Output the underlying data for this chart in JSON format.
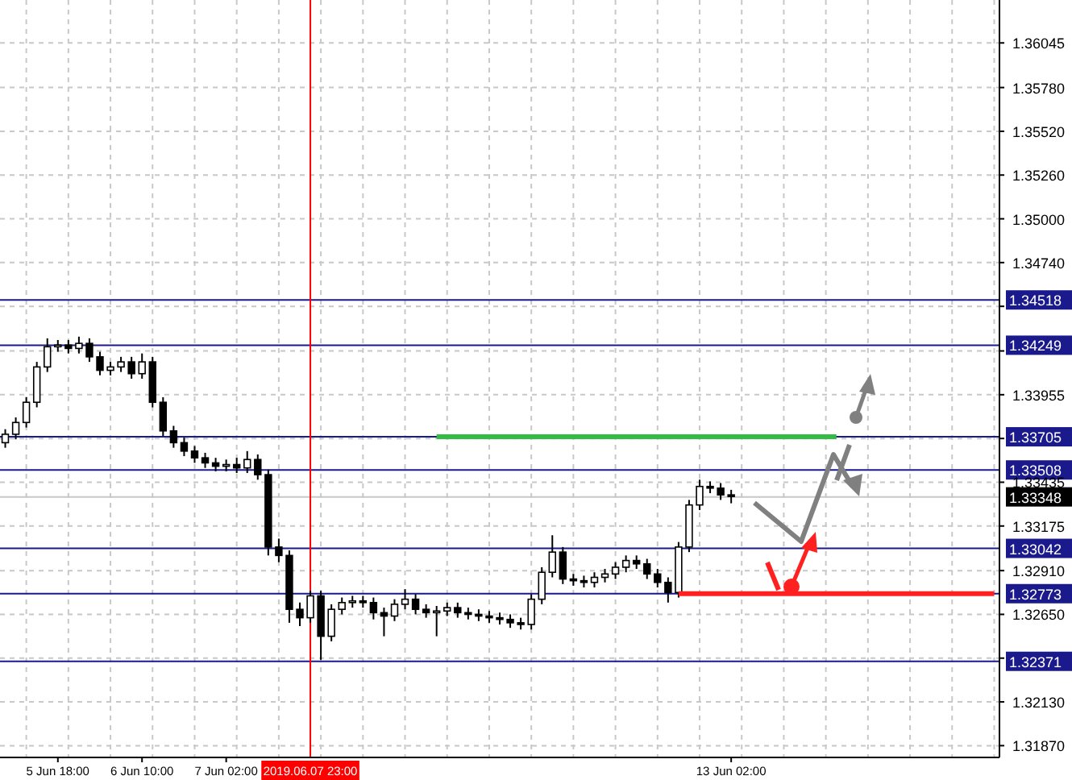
{
  "chart_data": {
    "type": "candlestick",
    "categories": [
      null,
      null,
      null,
      null,
      null,
      "5 Jun 18:00",
      null,
      null,
      null,
      null,
      null,
      null,
      null,
      "6 Jun 10:00",
      null,
      null,
      null,
      null,
      null,
      null,
      null,
      "7 Jun 02:00",
      null,
      null,
      null,
      null,
      null,
      null,
      null,
      "2019.06.07 23:00",
      null,
      null,
      null,
      null,
      null,
      null,
      null,
      null,
      null,
      null,
      null,
      null,
      null,
      null,
      null,
      null,
      null,
      null,
      null,
      null,
      null,
      null,
      null,
      null,
      null,
      null,
      null,
      null,
      null,
      null,
      null,
      null,
      null,
      null,
      null,
      null,
      null,
      null,
      null,
      "13 Jun 02:00",
      null,
      null,
      null,
      null,
      null,
      null,
      null,
      null,
      null,
      null,
      null,
      null,
      null,
      null,
      null,
      null,
      null,
      null,
      null,
      null,
      null,
      null,
      null,
      null,
      null
    ],
    "ohlc": [
      [
        1.3367,
        1.3375,
        1.3364,
        1.3372
      ],
      [
        1.3372,
        1.3382,
        1.3369,
        1.3379
      ],
      [
        1.3379,
        1.3394,
        1.3376,
        1.3391
      ],
      [
        1.3391,
        1.3415,
        1.3388,
        1.3412
      ],
      [
        1.3412,
        1.3429,
        1.3409,
        1.3424
      ],
      [
        1.3424,
        1.3428,
        1.3421,
        1.3425
      ],
      [
        1.3425,
        1.3428,
        1.342,
        1.3423
      ],
      [
        1.3423,
        1.343,
        1.342,
        1.3426
      ],
      [
        1.3426,
        1.3429,
        1.3415,
        1.3418
      ],
      [
        1.3418,
        1.3421,
        1.3407,
        1.341
      ],
      [
        1.341,
        1.3415,
        1.3407,
        1.3412
      ],
      [
        1.3412,
        1.3418,
        1.3409,
        1.3415
      ],
      [
        1.3415,
        1.3418,
        1.3405,
        1.3408
      ],
      [
        1.3408,
        1.342,
        1.3405,
        1.3415
      ],
      [
        1.3415,
        1.3418,
        1.3388,
        1.3391
      ],
      [
        1.3391,
        1.3394,
        1.3371,
        1.3374
      ],
      [
        1.3374,
        1.3377,
        1.3364,
        1.3367
      ],
      [
        1.3367,
        1.337,
        1.3359,
        1.3362
      ],
      [
        1.3362,
        1.3365,
        1.3355,
        1.3358
      ],
      [
        1.3358,
        1.3361,
        1.3352,
        1.3355
      ],
      [
        1.3355,
        1.3358,
        1.335,
        1.3353
      ],
      [
        1.3353,
        1.3357,
        1.335,
        1.3354
      ],
      [
        1.3354,
        1.3358,
        1.3349,
        1.3352
      ],
      [
        1.3352,
        1.3362,
        1.3349,
        1.3357
      ],
      [
        1.3357,
        1.336,
        1.3345,
        1.3348
      ],
      [
        1.3348,
        1.3351,
        1.33,
        1.3305
      ],
      [
        1.3305,
        1.331,
        1.3296,
        1.33
      ],
      [
        1.33,
        1.3303,
        1.326,
        1.3268
      ],
      [
        1.3268,
        1.3272,
        1.3258,
        1.3263
      ],
      [
        1.3263,
        1.3279,
        1.326,
        1.3276
      ],
      [
        1.3276,
        1.3279,
        1.3238,
        1.3252
      ],
      [
        1.3252,
        1.3271,
        1.3249,
        1.3268
      ],
      [
        1.3268,
        1.3275,
        1.3265,
        1.3272
      ],
      [
        1.3272,
        1.3276,
        1.3269,
        1.3273
      ],
      [
        1.3273,
        1.3276,
        1.3269,
        1.3272
      ],
      [
        1.3272,
        1.3275,
        1.3262,
        1.3266
      ],
      [
        1.3266,
        1.3269,
        1.3252,
        1.3264
      ],
      [
        1.3264,
        1.3274,
        1.3261,
        1.3271
      ],
      [
        1.3271,
        1.328,
        1.3268,
        1.3274
      ],
      [
        1.3274,
        1.3277,
        1.3265,
        1.3268
      ],
      [
        1.3268,
        1.3271,
        1.3263,
        1.3266
      ],
      [
        1.3266,
        1.327,
        1.3252,
        1.3267
      ],
      [
        1.3267,
        1.3272,
        1.3264,
        1.3269
      ],
      [
        1.3269,
        1.3272,
        1.3263,
        1.3266
      ],
      [
        1.3266,
        1.3269,
        1.3262,
        1.3265
      ],
      [
        1.3265,
        1.3268,
        1.3261,
        1.3264
      ],
      [
        1.3264,
        1.3267,
        1.326,
        1.3263
      ],
      [
        1.3263,
        1.3266,
        1.3259,
        1.3262
      ],
      [
        1.3262,
        1.3265,
        1.3257,
        1.326
      ],
      [
        1.326,
        1.3263,
        1.3256,
        1.3259
      ],
      [
        1.3259,
        1.3277,
        1.3256,
        1.3274
      ],
      [
        1.3274,
        1.3293,
        1.3271,
        1.329
      ],
      [
        1.329,
        1.3312,
        1.3287,
        1.3302
      ],
      [
        1.3302,
        1.3305,
        1.3283,
        1.3286
      ],
      [
        1.3286,
        1.3289,
        1.3282,
        1.3285
      ],
      [
        1.3285,
        1.3288,
        1.3281,
        1.3284
      ],
      [
        1.3284,
        1.329,
        1.3281,
        1.3287
      ],
      [
        1.3287,
        1.3292,
        1.3284,
        1.3289
      ],
      [
        1.3289,
        1.3296,
        1.3286,
        1.3293
      ],
      [
        1.3293,
        1.33,
        1.329,
        1.3297
      ],
      [
        1.3297,
        1.33,
        1.3292,
        1.3295
      ],
      [
        1.3295,
        1.3298,
        1.3286,
        1.3289
      ],
      [
        1.3289,
        1.3292,
        1.3281,
        1.3284
      ],
      [
        1.3284,
        1.3287,
        1.3272,
        1.3278
      ],
      [
        1.3278,
        1.3308,
        1.3275,
        1.3305
      ],
      [
        1.3305,
        1.3333,
        1.3302,
        1.333
      ],
      [
        1.333,
        1.3345,
        1.3327,
        1.3341
      ],
      [
        1.3341,
        1.3344,
        1.3337,
        1.334
      ],
      [
        1.334,
        1.3343,
        1.3333,
        1.3336
      ],
      [
        1.3336,
        1.3339,
        1.3331,
        1.3335
      ],
      null,
      null,
      null,
      null,
      null,
      null,
      null,
      null,
      null,
      null,
      null,
      null,
      null,
      null,
      null,
      null,
      null,
      null,
      null,
      null,
      null,
      null,
      null,
      null,
      null
    ],
    "series": [
      {
        "type": "line",
        "color": "#33bb44",
        "values": [
          null,
          null,
          null,
          null,
          null,
          null,
          null,
          null,
          null,
          null,
          null,
          null,
          null,
          null,
          null,
          null,
          null,
          null,
          null,
          null,
          null,
          null,
          null,
          null,
          null,
          null,
          null,
          null,
          null,
          null,
          null,
          null,
          null,
          null,
          null,
          null,
          null,
          null,
          null,
          null,
          null,
          1.33705,
          1.33705,
          1.33705,
          1.33705,
          1.33705,
          1.33705,
          1.33705,
          1.33705,
          1.33705,
          1.33705,
          1.33705,
          1.33705,
          1.33705,
          1.33705,
          1.33705,
          1.33705,
          1.33705,
          1.33705,
          1.33705,
          1.33705,
          1.33705,
          1.33705,
          1.33705,
          1.33705,
          1.33705,
          1.33705,
          1.33705,
          1.33705,
          1.33705,
          1.33705,
          1.33705,
          1.33705,
          1.33705,
          1.33705,
          1.33705,
          1.33705,
          1.33705,
          1.33705,
          1.33705,
          null,
          null,
          null,
          null,
          null,
          null,
          null,
          null,
          null,
          null,
          null,
          null,
          null,
          null,
          null
        ]
      },
      {
        "type": "line",
        "color": "#ff2020",
        "values": [
          null,
          null,
          null,
          null,
          null,
          null,
          null,
          null,
          null,
          null,
          null,
          null,
          null,
          null,
          null,
          null,
          null,
          null,
          null,
          null,
          null,
          null,
          null,
          null,
          null,
          null,
          null,
          null,
          null,
          null,
          null,
          null,
          null,
          null,
          null,
          null,
          null,
          null,
          null,
          null,
          null,
          null,
          null,
          null,
          null,
          null,
          null,
          null,
          null,
          null,
          null,
          null,
          null,
          null,
          null,
          null,
          null,
          null,
          null,
          null,
          null,
          null,
          null,
          null,
          1.32773,
          1.32773,
          1.32773,
          1.32773,
          1.32773,
          1.32773,
          1.32773,
          1.32773,
          1.32773,
          1.32773,
          1.32773,
          1.32773,
          1.32773,
          1.32773,
          1.32773,
          1.32773,
          1.32773,
          1.32773,
          1.32773,
          1.32773,
          1.32773,
          1.32773,
          1.32773,
          1.32773,
          1.32773,
          1.32773,
          1.32773,
          1.32773,
          1.32773,
          1.32773,
          1.32773
        ]
      }
    ],
    "ylim": [
      1.318,
      1.363
    ],
    "yticks": [
      {
        "value": 1.3187,
        "label": "1.31870"
      },
      {
        "value": 1.3213,
        "label": "1.32130"
      },
      {
        "value": 1.3239,
        "label": null
      },
      {
        "value": 1.3265,
        "label": "1.32650"
      },
      {
        "value": 1.3291,
        "label": "1.32910"
      },
      1.33175,
      1.33435,
      {
        "value": 1.33695,
        "label": null
      },
      1.33955,
      {
        "value": 1.34215,
        "label": null
      },
      {
        "value": 1.3448,
        "label": null
      },
      {
        "value": 1.3474,
        "label": "1.34740"
      },
      {
        "value": 1.35,
        "label": "1.35000"
      },
      {
        "value": 1.3526,
        "label": "1.35260"
      },
      {
        "value": 1.3552,
        "label": "1.35520"
      },
      {
        "value": 1.3578,
        "label": "1.35780"
      },
      1.36045
    ],
    "ref_lines": [
      {
        "axis": "y",
        "value": 1.34518,
        "label": "1.34518",
        "color": "#1a1a8c"
      },
      {
        "axis": "y",
        "value": 1.34249,
        "label": "1.34249",
        "color": "#1a1a8c"
      },
      {
        "axis": "y",
        "value": 1.33705,
        "label": "1.33705",
        "color": "#1a1a8c"
      },
      {
        "axis": "y",
        "value": 1.33508,
        "label": "1.33508",
        "color": "#1a1a8c"
      },
      {
        "axis": "y",
        "value": 1.33348,
        "label": "1.33348",
        "color": "#c8c8c8"
      },
      {
        "axis": "y",
        "value": 1.33042,
        "label": "1.33042",
        "color": "#1a1a8c"
      },
      {
        "axis": "y",
        "value": 1.32773,
        "label": "1.32773",
        "color": "#1a1a8c"
      },
      {
        "axis": "y",
        "value": 1.32371,
        "label": "1.32371",
        "color": "#1a1a8c"
      },
      {
        "axis": "x",
        "value": "2019.06.07 23:00",
        "color": "#ff0000"
      }
    ],
    "grid": true
  }
}
